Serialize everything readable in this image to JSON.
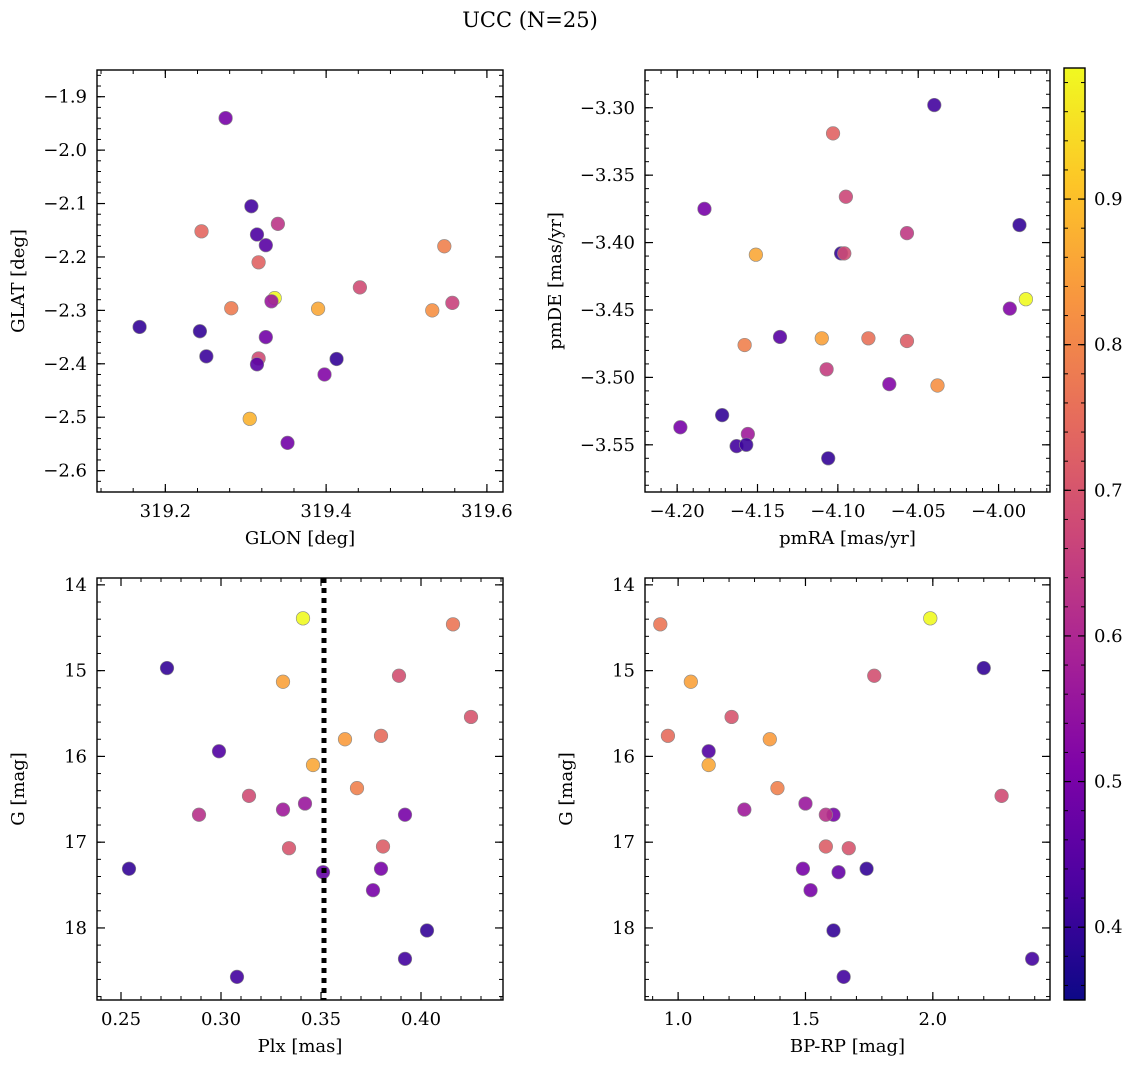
{
  "figure": {
    "title": "UCC (N=25)"
  },
  "colorbar": {
    "colormap": "plasma",
    "range": [
      0.35,
      0.99
    ],
    "ticks": [
      "0.4",
      "0.5",
      "0.6",
      "0.7",
      "0.8",
      "0.9"
    ]
  },
  "chart_data": [
    {
      "type": "scatter",
      "xlabel": "GLON [deg]",
      "ylabel": "GLAT [deg]",
      "xlim": [
        319.115,
        319.62
      ],
      "ylim": [
        -2.64,
        -1.85
      ],
      "xticks": [
        "319.2",
        "319.4",
        "319.6"
      ],
      "yticks": [
        "-1.9",
        "-2.0",
        "-2.1",
        "-2.2",
        "-2.3",
        "-2.4",
        "-2.5",
        "-2.6"
      ],
      "points": [
        {
          "x": 319.275,
          "y": -1.94,
          "c": 0.5
        },
        {
          "x": 319.307,
          "y": -2.105,
          "c": 0.42
        },
        {
          "x": 319.34,
          "y": -2.138,
          "c": 0.63
        },
        {
          "x": 319.245,
          "y": -2.152,
          "c": 0.74
        },
        {
          "x": 319.314,
          "y": -2.158,
          "c": 0.43
        },
        {
          "x": 319.325,
          "y": -2.178,
          "c": 0.45
        },
        {
          "x": 319.547,
          "y": -2.18,
          "c": 0.79
        },
        {
          "x": 319.316,
          "y": -2.21,
          "c": 0.73
        },
        {
          "x": 319.442,
          "y": -2.257,
          "c": 0.68
        },
        {
          "x": 319.336,
          "y": -2.277,
          "c": 0.99
        },
        {
          "x": 319.332,
          "y": -2.283,
          "c": 0.56
        },
        {
          "x": 319.557,
          "y": -2.286,
          "c": 0.66
        },
        {
          "x": 319.282,
          "y": -2.296,
          "c": 0.78
        },
        {
          "x": 319.39,
          "y": -2.297,
          "c": 0.86
        },
        {
          "x": 319.532,
          "y": -2.3,
          "c": 0.82
        },
        {
          "x": 319.168,
          "y": -2.331,
          "c": 0.4
        },
        {
          "x": 319.243,
          "y": -2.339,
          "c": 0.4
        },
        {
          "x": 319.325,
          "y": -2.35,
          "c": 0.49
        },
        {
          "x": 319.251,
          "y": -2.386,
          "c": 0.41
        },
        {
          "x": 319.316,
          "y": -2.39,
          "c": 0.68
        },
        {
          "x": 319.413,
          "y": -2.391,
          "c": 0.4
        },
        {
          "x": 319.314,
          "y": -2.401,
          "c": 0.45
        },
        {
          "x": 319.398,
          "y": -2.42,
          "c": 0.52
        },
        {
          "x": 319.305,
          "y": -2.503,
          "c": 0.88
        },
        {
          "x": 319.352,
          "y": -2.548,
          "c": 0.49
        }
      ]
    },
    {
      "type": "scatter",
      "xlabel": "pmRA [mas/yr]",
      "ylabel": "pmDE [mas/yr]",
      "xlim": [
        -4.22,
        -3.968
      ],
      "ylim": [
        -3.585,
        -3.272
      ],
      "xticks": [
        "-4.20",
        "-4.15",
        "-4.10",
        "-4.05",
        "-4.00"
      ],
      "yticks": [
        "-3.30",
        "-3.35",
        "-3.40",
        "-3.45",
        "-3.50",
        "-3.55"
      ],
      "points": [
        {
          "x": -4.04,
          "y": -3.298,
          "c": 0.42
        },
        {
          "x": -4.103,
          "y": -3.319,
          "c": 0.73
        },
        {
          "x": -4.095,
          "y": -3.366,
          "c": 0.67
        },
        {
          "x": -4.183,
          "y": -3.375,
          "c": 0.5
        },
        {
          "x": -3.987,
          "y": -3.387,
          "c": 0.4
        },
        {
          "x": -4.057,
          "y": -3.393,
          "c": 0.64
        },
        {
          "x": -4.098,
          "y": -3.408,
          "c": 0.4
        },
        {
          "x": -4.096,
          "y": -3.408,
          "c": 0.68
        },
        {
          "x": -4.151,
          "y": -3.409,
          "c": 0.86
        },
        {
          "x": -3.983,
          "y": -3.442,
          "c": 0.99
        },
        {
          "x": -3.993,
          "y": -3.449,
          "c": 0.52
        },
        {
          "x": -4.136,
          "y": -3.47,
          "c": 0.45
        },
        {
          "x": -4.11,
          "y": -3.471,
          "c": 0.85
        },
        {
          "x": -4.081,
          "y": -3.471,
          "c": 0.76
        },
        {
          "x": -4.057,
          "y": -3.473,
          "c": 0.72
        },
        {
          "x": -4.158,
          "y": -3.476,
          "c": 0.79
        },
        {
          "x": -4.107,
          "y": -3.494,
          "c": 0.65
        },
        {
          "x": -4.068,
          "y": -3.505,
          "c": 0.52
        },
        {
          "x": -4.038,
          "y": -3.506,
          "c": 0.82
        },
        {
          "x": -4.198,
          "y": -3.537,
          "c": 0.5
        },
        {
          "x": -4.172,
          "y": -3.528,
          "c": 0.4
        },
        {
          "x": -4.156,
          "y": -3.542,
          "c": 0.57
        },
        {
          "x": -4.163,
          "y": -3.551,
          "c": 0.42
        },
        {
          "x": -4.157,
          "y": -3.55,
          "c": 0.41
        },
        {
          "x": -4.106,
          "y": -3.56,
          "c": 0.4
        }
      ]
    },
    {
      "type": "scatter",
      "xlabel": "Plx [mas]",
      "ylabel": "G [mag]",
      "xlim": [
        0.238,
        0.441
      ],
      "ylim": [
        18.84,
        13.92
      ],
      "invert_y": true,
      "xticks": [
        "0.25",
        "0.30",
        "0.35",
        "0.40"
      ],
      "yticks": [
        "14",
        "15",
        "16",
        "17",
        "18"
      ],
      "vline": {
        "x": 0.3515,
        "style": "dotted"
      },
      "points": [
        {
          "x": 0.341,
          "y": 14.39,
          "c": 0.99
        },
        {
          "x": 0.416,
          "y": 14.46,
          "c": 0.77
        },
        {
          "x": 0.273,
          "y": 14.97,
          "c": 0.4
        },
        {
          "x": 0.389,
          "y": 15.06,
          "c": 0.69
        },
        {
          "x": 0.331,
          "y": 15.13,
          "c": 0.85
        },
        {
          "x": 0.425,
          "y": 15.54,
          "c": 0.7
        },
        {
          "x": 0.38,
          "y": 15.76,
          "c": 0.75
        },
        {
          "x": 0.362,
          "y": 15.8,
          "c": 0.84
        },
        {
          "x": 0.299,
          "y": 15.94,
          "c": 0.44
        },
        {
          "x": 0.346,
          "y": 16.1,
          "c": 0.86
        },
        {
          "x": 0.368,
          "y": 16.37,
          "c": 0.79
        },
        {
          "x": 0.314,
          "y": 16.46,
          "c": 0.68
        },
        {
          "x": 0.342,
          "y": 16.55,
          "c": 0.56
        },
        {
          "x": 0.331,
          "y": 16.62,
          "c": 0.57
        },
        {
          "x": 0.392,
          "y": 16.68,
          "c": 0.5
        },
        {
          "x": 0.289,
          "y": 16.68,
          "c": 0.62
        },
        {
          "x": 0.381,
          "y": 17.05,
          "c": 0.72
        },
        {
          "x": 0.334,
          "y": 17.07,
          "c": 0.7
        },
        {
          "x": 0.254,
          "y": 17.31,
          "c": 0.4
        },
        {
          "x": 0.38,
          "y": 17.31,
          "c": 0.5
        },
        {
          "x": 0.351,
          "y": 17.35,
          "c": 0.47
        },
        {
          "x": 0.376,
          "y": 17.56,
          "c": 0.5
        },
        {
          "x": 0.403,
          "y": 18.03,
          "c": 0.4
        },
        {
          "x": 0.392,
          "y": 18.36,
          "c": 0.42
        },
        {
          "x": 0.308,
          "y": 18.57,
          "c": 0.42
        }
      ]
    },
    {
      "type": "scatter",
      "xlabel": "BP-RP [mag]",
      "ylabel": "G [mag]",
      "xlim": [
        0.87,
        2.46
      ],
      "ylim": [
        18.84,
        13.92
      ],
      "invert_y": true,
      "xticks": [
        "1.0",
        "1.5",
        "2.0"
      ],
      "yticks": [
        "14",
        "15",
        "16",
        "17",
        "18"
      ],
      "points": [
        {
          "x": 1.99,
          "y": 14.39,
          "c": 0.99
        },
        {
          "x": 0.93,
          "y": 14.46,
          "c": 0.77
        },
        {
          "x": 2.2,
          "y": 14.97,
          "c": 0.4
        },
        {
          "x": 1.77,
          "y": 15.06,
          "c": 0.69
        },
        {
          "x": 1.05,
          "y": 15.13,
          "c": 0.85
        },
        {
          "x": 1.21,
          "y": 15.54,
          "c": 0.7
        },
        {
          "x": 0.96,
          "y": 15.76,
          "c": 0.75
        },
        {
          "x": 1.36,
          "y": 15.8,
          "c": 0.84
        },
        {
          "x": 1.12,
          "y": 15.94,
          "c": 0.44
        },
        {
          "x": 1.12,
          "y": 16.1,
          "c": 0.86
        },
        {
          "x": 1.39,
          "y": 16.37,
          "c": 0.79
        },
        {
          "x": 2.27,
          "y": 16.46,
          "c": 0.68
        },
        {
          "x": 1.5,
          "y": 16.55,
          "c": 0.56
        },
        {
          "x": 1.26,
          "y": 16.62,
          "c": 0.57
        },
        {
          "x": 1.61,
          "y": 16.68,
          "c": 0.5
        },
        {
          "x": 1.58,
          "y": 16.68,
          "c": 0.62
        },
        {
          "x": 1.58,
          "y": 17.05,
          "c": 0.72
        },
        {
          "x": 1.67,
          "y": 17.07,
          "c": 0.7
        },
        {
          "x": 1.74,
          "y": 17.31,
          "c": 0.4
        },
        {
          "x": 1.49,
          "y": 17.31,
          "c": 0.5
        },
        {
          "x": 1.63,
          "y": 17.35,
          "c": 0.47
        },
        {
          "x": 1.52,
          "y": 17.56,
          "c": 0.5
        },
        {
          "x": 1.61,
          "y": 18.03,
          "c": 0.4
        },
        {
          "x": 2.39,
          "y": 18.36,
          "c": 0.42
        },
        {
          "x": 1.65,
          "y": 18.57,
          "c": 0.42
        }
      ]
    }
  ]
}
